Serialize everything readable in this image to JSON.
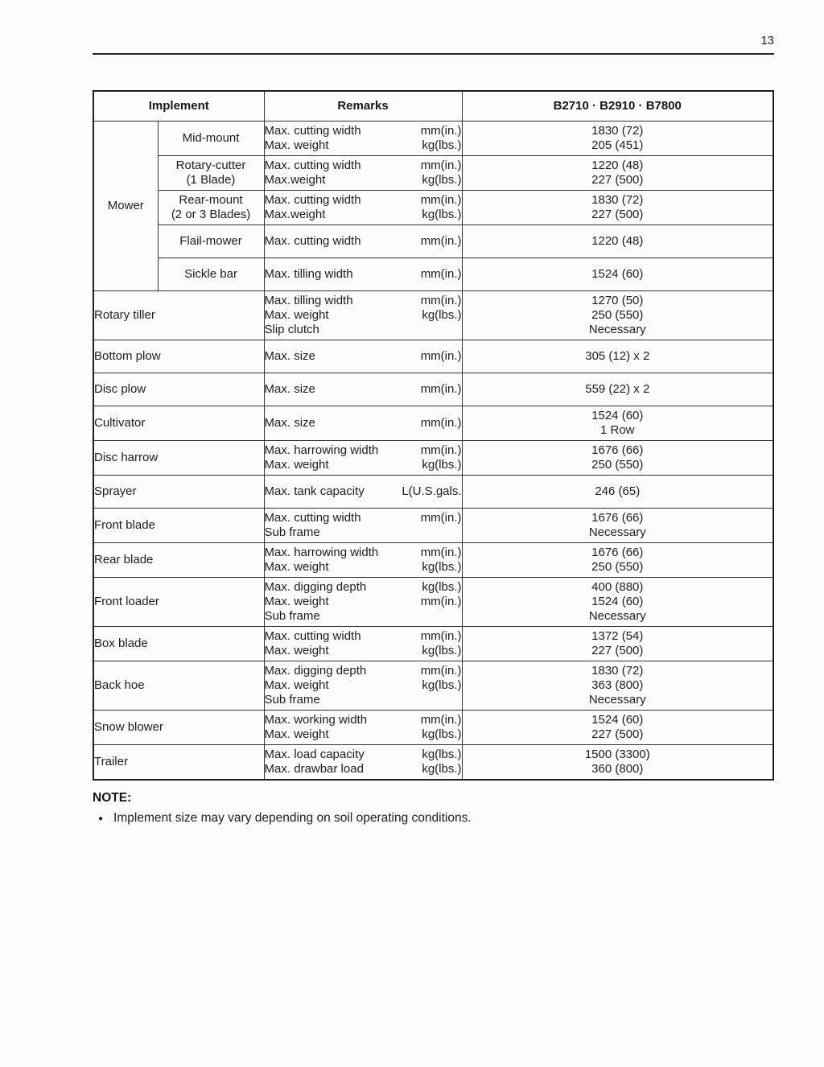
{
  "page": {
    "number": "13"
  },
  "table": {
    "headers": {
      "implement": "Implement",
      "remarks": "Remarks",
      "models": "B2710 · B2910 · B7800"
    },
    "rows": [
      {
        "group": "Mower",
        "group_rowspan": 5,
        "sub": [
          "Mid-mount"
        ],
        "remarks": [
          [
            "Max. cutting width",
            "mm(in.)"
          ],
          [
            "Max. weight",
            "kg(lbs.)"
          ]
        ],
        "values": [
          "1830 (72)",
          "205 (451)"
        ]
      },
      {
        "sub": [
          "Rotary-cutter",
          "(1 Blade)"
        ],
        "remarks": [
          [
            "Max. cutting width",
            "mm(in.)"
          ],
          [
            "Max.weight",
            "kg(lbs.)"
          ]
        ],
        "values": [
          "1220 (48)",
          "227 (500)"
        ]
      },
      {
        "sub": [
          "Rear-mount",
          "(2 or 3 Blades)"
        ],
        "remarks": [
          [
            "Max. cutting width",
            "mm(in.)"
          ],
          [
            "Max.weight",
            "kg(lbs.)"
          ]
        ],
        "values": [
          "1830 (72)",
          "227 (500)"
        ]
      },
      {
        "sub": [
          "Flail-mower"
        ],
        "tall": true,
        "remarks": [
          [
            "Max. cutting width",
            "mm(in.)"
          ]
        ],
        "values": [
          "1220 (48)"
        ]
      },
      {
        "sub": [
          "Sickle bar"
        ],
        "tall": true,
        "remarks": [
          [
            "Max. tilling width",
            "mm(in.)"
          ]
        ],
        "values": [
          "1524 (60)"
        ]
      },
      {
        "implement": "Rotary tiller",
        "remarks": [
          [
            "Max. tilling width",
            "mm(in.)"
          ],
          [
            "Max. weight",
            "kg(lbs.)"
          ],
          [
            "Slip clutch",
            ""
          ]
        ],
        "values": [
          "1270 (50)",
          "250 (550)",
          "Necessary"
        ]
      },
      {
        "implement": "Bottom plow",
        "tall": true,
        "remarks": [
          [
            "Max. size",
            "mm(in.)"
          ]
        ],
        "values": [
          "305 (12) x 2"
        ]
      },
      {
        "implement": "Disc plow",
        "tall": true,
        "remarks": [
          [
            "Max. size",
            "mm(in.)"
          ]
        ],
        "values": [
          "559 (22) x 2"
        ]
      },
      {
        "implement": "Cultivator",
        "remarks": [
          [
            "Max. size",
            "mm(in.)"
          ]
        ],
        "values": [
          "1524 (60)",
          "1 Row"
        ]
      },
      {
        "implement": "Disc harrow",
        "remarks": [
          [
            "Max. harrowing width",
            "mm(in.)"
          ],
          [
            "Max. weight",
            "kg(lbs.)"
          ]
        ],
        "values": [
          "1676 (66)",
          "250 (550)"
        ]
      },
      {
        "implement": "Sprayer",
        "tall": true,
        "remarks": [
          [
            "Max. tank capacity",
            "L(U.S.gals."
          ]
        ],
        "values": [
          "246 (65)"
        ]
      },
      {
        "implement": "Front blade",
        "remarks": [
          [
            "Max. cutting width",
            "mm(in.)"
          ],
          [
            "Sub frame",
            ""
          ]
        ],
        "values": [
          "1676 (66)",
          "Necessary"
        ]
      },
      {
        "implement": "Rear blade",
        "remarks": [
          [
            "Max. harrowing width",
            "mm(in.)"
          ],
          [
            "Max. weight",
            "kg(lbs.)"
          ]
        ],
        "values": [
          "1676 (66)",
          "250 (550)"
        ]
      },
      {
        "implement": "Front loader",
        "remarks": [
          [
            "Max. digging depth",
            "kg(lbs.)"
          ],
          [
            "Max. weight",
            "mm(in.)"
          ],
          [
            "Sub frame",
            ""
          ]
        ],
        "values": [
          "400 (880)",
          "1524 (60)",
          "Necessary"
        ]
      },
      {
        "implement": "Box blade",
        "remarks": [
          [
            "Max. cutting width",
            "mm(in.)"
          ],
          [
            "Max. weight",
            "kg(lbs.)"
          ]
        ],
        "values": [
          "1372 (54)",
          "227 (500)"
        ]
      },
      {
        "implement": "Back hoe",
        "remarks": [
          [
            "Max. digging depth",
            "mm(in.)"
          ],
          [
            "Max. weight",
            "kg(lbs.)"
          ],
          [
            "Sub frame",
            ""
          ]
        ],
        "values": [
          "1830 (72)",
          "363 (800)",
          "Necessary"
        ]
      },
      {
        "implement": "Snow blower",
        "remarks": [
          [
            "Max. working width",
            "mm(in.)"
          ],
          [
            "Max. weight",
            "kg(lbs.)"
          ]
        ],
        "values": [
          "1524 (60)",
          "227 (500)"
        ]
      },
      {
        "implement": "Trailer",
        "remarks": [
          [
            "Max. load capacity",
            "kg(lbs.)"
          ],
          [
            "Max. drawbar load",
            "kg(lbs.)"
          ]
        ],
        "values": [
          "1500 (3300)",
          "360 (800)"
        ]
      }
    ]
  },
  "note": {
    "title": "NOTE:",
    "bullet_glyph": "●",
    "bullet_text": "Implement size may vary depending on soil operating conditions."
  }
}
